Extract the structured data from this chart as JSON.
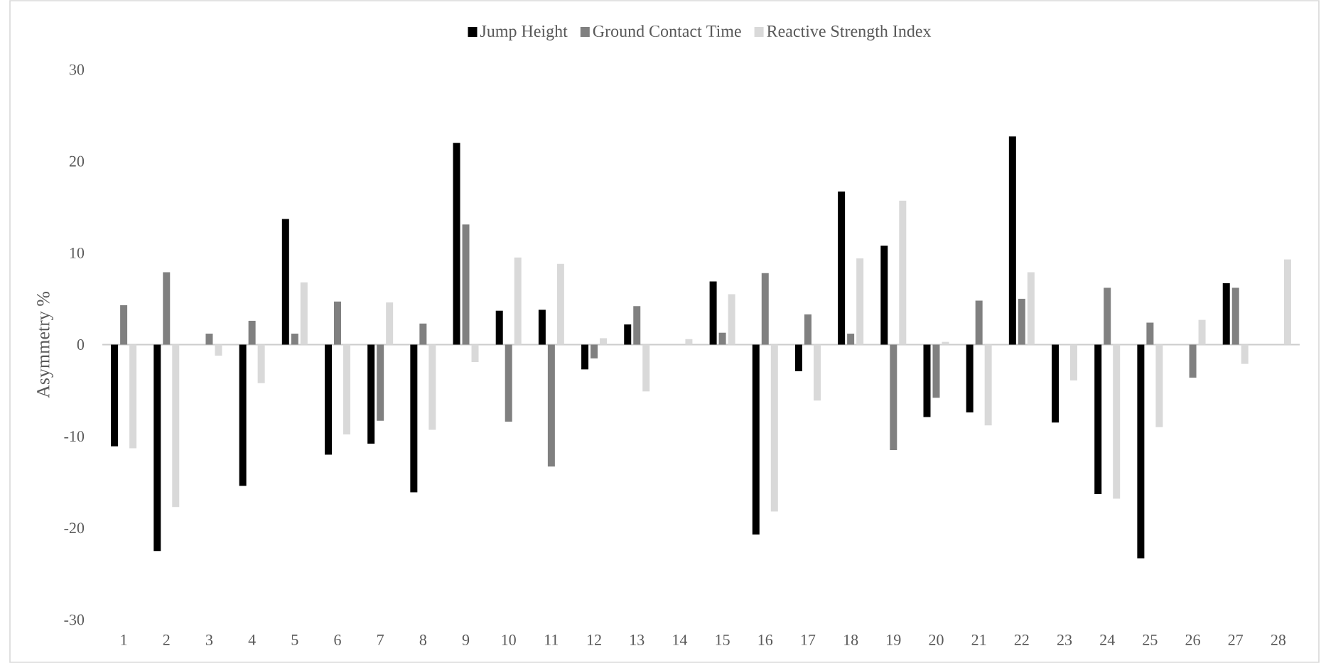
{
  "chart_data": {
    "type": "bar",
    "ylabel": "Asymmetry %",
    "categories": [
      "1",
      "2",
      "3",
      "4",
      "5",
      "6",
      "7",
      "8",
      "9",
      "10",
      "11",
      "12",
      "13",
      "14",
      "15",
      "16",
      "17",
      "18",
      "19",
      "20",
      "21",
      "22",
      "23",
      "24",
      "25",
      "26",
      "27",
      "28"
    ],
    "series": [
      {
        "name": "Jump Height",
        "color": "#000000",
        "values": [
          -11.1,
          -22.5,
          0,
          -15.4,
          13.7,
          -12.0,
          -10.8,
          -16.1,
          22.0,
          3.7,
          3.8,
          -2.7,
          2.2,
          0,
          6.9,
          -20.7,
          -2.9,
          16.7,
          10.8,
          -7.9,
          -7.4,
          22.7,
          -8.5,
          -16.3,
          -23.3,
          0,
          6.7,
          0
        ]
      },
      {
        "name": "Ground Contact Time",
        "color": "#808080",
        "values": [
          4.3,
          7.9,
          1.2,
          2.6,
          1.2,
          4.7,
          -8.3,
          2.3,
          13.1,
          -8.4,
          -13.3,
          -1.5,
          4.2,
          0,
          1.3,
          7.8,
          3.3,
          1.2,
          -11.5,
          -5.8,
          4.8,
          5.0,
          0,
          6.2,
          2.4,
          -3.6,
          6.2,
          0
        ]
      },
      {
        "name": "Reactive Strength Index",
        "color": "#d9d9d9",
        "values": [
          -11.3,
          -17.7,
          -1.2,
          -4.2,
          6.8,
          -9.8,
          4.6,
          -9.3,
          -1.9,
          9.5,
          8.8,
          0.7,
          -5.1,
          0.6,
          5.5,
          -18.2,
          -6.1,
          9.4,
          15.7,
          0.3,
          -8.8,
          7.9,
          -3.9,
          -16.8,
          -9.0,
          2.7,
          -2.1,
          9.3
        ]
      }
    ],
    "ylim": [
      -30,
      30
    ],
    "yticks": [
      -30,
      -20,
      -10,
      0,
      10,
      20,
      30
    ],
    "legend": "top"
  }
}
